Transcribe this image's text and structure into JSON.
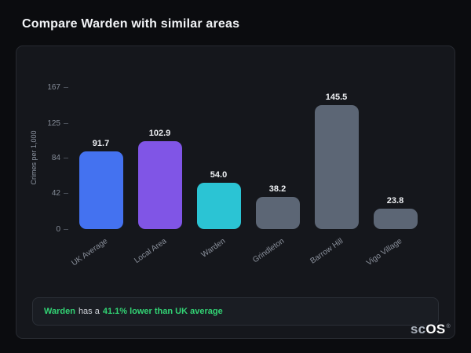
{
  "page": {
    "title": "Compare Warden with similar areas"
  },
  "chart_data": {
    "type": "bar",
    "title": "",
    "xlabel": "",
    "ylabel": "Crimes per 1,000",
    "ylim": [
      0,
      167
    ],
    "yticks": [
      167,
      125,
      84,
      42,
      0
    ],
    "grid": false,
    "legend": "none",
    "categories": [
      "UK Average",
      "Local Area",
      "Warden",
      "Grindleton",
      "Barrow Hill",
      "Vigo Village"
    ],
    "values": [
      91.7,
      102.9,
      54.0,
      38.2,
      145.5,
      23.8
    ],
    "value_labels": [
      "91.7",
      "102.9",
      "54.0",
      "38.2",
      "145.5",
      "23.8"
    ],
    "bar_colors": [
      "#4472f0",
      "#8055e6",
      "#2bc4d4",
      "#5c6675",
      "#5c6675",
      "#5c6675"
    ]
  },
  "note": {
    "subject": "Warden",
    "middle": "has a",
    "highlight": "41.1% lower than UK average",
    "accent_color": "#32d374"
  },
  "brand": {
    "prefix": "sc",
    "suffix": "OS",
    "reg": "®"
  }
}
